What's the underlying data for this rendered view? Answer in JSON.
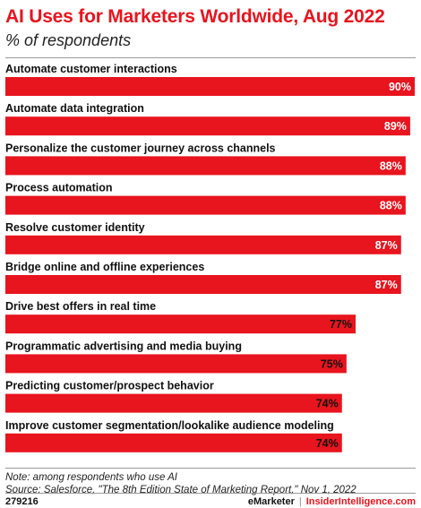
{
  "chart_data": {
    "type": "bar",
    "orientation": "horizontal",
    "title": "AI Uses for Marketers Worldwide, Aug 2022",
    "subtitle": "% of respondents",
    "categories": [
      "Automate customer interactions",
      "Automate data integration",
      "Personalize the customer journey across channels",
      "Process automation",
      "Resolve customer identity",
      "Bridge online and offline experiences",
      "Drive best offers in real time",
      "Programmatic advertising and media buying",
      "Predicting customer/prospect behavior",
      "Improve customer segmentation/lookalike audience modeling"
    ],
    "values": [
      90,
      89,
      88,
      88,
      87,
      87,
      77,
      75,
      74,
      74
    ],
    "value_labels": [
      "90%",
      "89%",
      "88%",
      "88%",
      "87%",
      "87%",
      "77%",
      "75%",
      "74%",
      "74%"
    ],
    "xlim": [
      0,
      90
    ],
    "bar_color": "#e8141e",
    "grid": false,
    "legend": "none"
  },
  "notes": {
    "note": "Note: among respondents who use AI",
    "source": "Source: Salesforce, \"The 8th Edition State of Marketing Report,\" Nov 1, 2022"
  },
  "footer": {
    "id": "279216",
    "brand1": "eMarketer",
    "separator": "|",
    "brand2": "InsiderIntelligence.com"
  }
}
